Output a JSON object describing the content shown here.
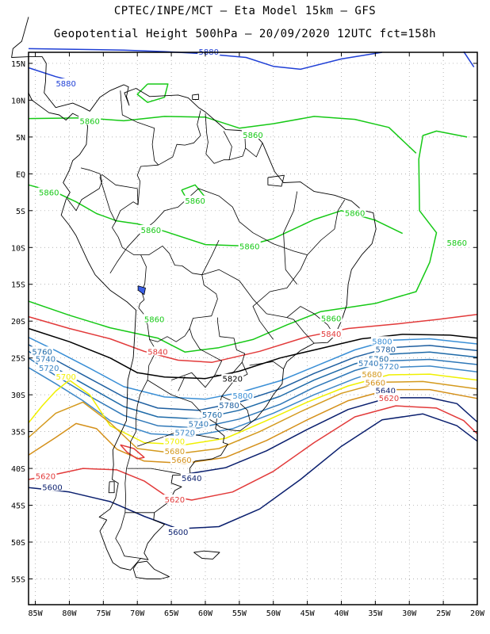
{
  "header": {
    "line1": "CPTEC/INPE/MCT –  Eta Model 15km – GFS",
    "line2": "Geopotential Height 500hPa – 20/09/2020 12UTC fct=158h"
  },
  "map": {
    "extent": {
      "lon": [
        -86,
        -20
      ],
      "lat": [
        -58.5,
        16.5
      ]
    },
    "lat_ticks": [
      {
        "lat": 15,
        "label": "15N"
      },
      {
        "lat": 10,
        "label": "10N"
      },
      {
        "lat": 5,
        "label": "5N"
      },
      {
        "lat": 0,
        "label": "EQ"
      },
      {
        "lat": -5,
        "label": "5S"
      },
      {
        "lat": -10,
        "label": "10S"
      },
      {
        "lat": -15,
        "label": "15S"
      },
      {
        "lat": -20,
        "label": "20S"
      },
      {
        "lat": -25,
        "label": "25S"
      },
      {
        "lat": -30,
        "label": "30S"
      },
      {
        "lat": -35,
        "label": "35S"
      },
      {
        "lat": -40,
        "label": "40S"
      },
      {
        "lat": -45,
        "label": "45S"
      },
      {
        "lat": -50,
        "label": "50S"
      },
      {
        "lat": -55,
        "label": "55S"
      }
    ],
    "lon_ticks": [
      {
        "lon": -85,
        "label": "85W"
      },
      {
        "lon": -80,
        "label": "80W"
      },
      {
        "lon": -75,
        "label": "75W"
      },
      {
        "lon": -70,
        "label": "70W"
      },
      {
        "lon": -65,
        "label": "65W"
      },
      {
        "lon": -60,
        "label": "60W"
      },
      {
        "lon": -55,
        "label": "55W"
      },
      {
        "lon": -50,
        "label": "50W"
      },
      {
        "lon": -45,
        "label": "45W"
      },
      {
        "lon": -40,
        "label": "40W"
      },
      {
        "lon": -35,
        "label": "35W"
      },
      {
        "lon": -30,
        "label": "30W"
      },
      {
        "lon": -25,
        "label": "25W"
      },
      {
        "lon": -20,
        "label": "20W"
      }
    ],
    "contour_colors": {
      "5880": "#1f3fd6",
      "5860": "#16c916",
      "5840": "#e23a3a",
      "5820": "#000000",
      "5800": "#3a8fd6",
      "5780": "#1e5fa0",
      "5760": "#1e6aa8",
      "5740": "#2f78b8",
      "5720": "#3d88c8",
      "5700": "#f0f000",
      "5680": "#d49a1e",
      "5660": "#d4901a",
      "5640": "#0a1f6e",
      "5620": "#e23a3a",
      "5600": "#0a1f6e"
    },
    "contour_labels": [
      {
        "text": "5880",
        "lon": -80.5,
        "lat": 12.3,
        "c": "5880"
      },
      {
        "text": "5880",
        "lon": -59.5,
        "lat": 16.6,
        "c": "5880"
      },
      {
        "text": "5860",
        "lon": -77.0,
        "lat": 7.2,
        "c": "5860"
      },
      {
        "text": "5860",
        "lon": -53.0,
        "lat": 5.3,
        "c": "5860"
      },
      {
        "text": "5860",
        "lon": -83.0,
        "lat": -2.5,
        "c": "5860"
      },
      {
        "text": "5860",
        "lon": -61.5,
        "lat": -3.6,
        "c": "5860"
      },
      {
        "text": "5860",
        "lon": -68.0,
        "lat": -7.6,
        "c": "5860"
      },
      {
        "text": "5860",
        "lon": -53.5,
        "lat": -9.8,
        "c": "5860"
      },
      {
        "text": "5860",
        "lon": -38.0,
        "lat": -5.3,
        "c": "5860"
      },
      {
        "text": "5860",
        "lon": -23.0,
        "lat": -9.3,
        "c": "5860"
      },
      {
        "text": "5860",
        "lon": -67.5,
        "lat": -19.7,
        "c": "5860"
      },
      {
        "text": "5860",
        "lon": -41.5,
        "lat": -19.6,
        "c": "5860"
      },
      {
        "text": "5840",
        "lon": -67.0,
        "lat": -24.1,
        "c": "5840"
      },
      {
        "text": "5840",
        "lon": -41.5,
        "lat": -21.7,
        "c": "5840"
      },
      {
        "text": "5820",
        "lon": -56.0,
        "lat": -27.8,
        "c": "5820"
      },
      {
        "text": "5800",
        "lon": -54.5,
        "lat": -30.1,
        "c": "5800"
      },
      {
        "text": "5800",
        "lon": -34.0,
        "lat": -22.7,
        "c": "5800"
      },
      {
        "text": "5780",
        "lon": -56.5,
        "lat": -31.4,
        "c": "5780"
      },
      {
        "text": "5780",
        "lon": -33.5,
        "lat": -23.8,
        "c": "5780"
      },
      {
        "text": "5760",
        "lon": -59.0,
        "lat": -32.7,
        "c": "5760"
      },
      {
        "text": "5740",
        "lon": -61.0,
        "lat": -33.9,
        "c": "5740"
      },
      {
        "text": "5720",
        "lon": -63.0,
        "lat": -35.1,
        "c": "5720"
      },
      {
        "text": "5720",
        "lon": -83.0,
        "lat": -26.3,
        "c": "5720"
      },
      {
        "text": "5720",
        "lon": -33.0,
        "lat": -26.1,
        "c": "5720"
      },
      {
        "text": "5700",
        "lon": -64.5,
        "lat": -36.3,
        "c": "5700"
      },
      {
        "text": "5700",
        "lon": -80.5,
        "lat": -27.5,
        "c": "5700"
      },
      {
        "text": "5680",
        "lon": -64.5,
        "lat": -37.6,
        "c": "5680"
      },
      {
        "text": "5680",
        "lon": -35.5,
        "lat": -27.2,
        "c": "5680"
      },
      {
        "text": "5660",
        "lon": -63.5,
        "lat": -38.8,
        "c": "5660"
      },
      {
        "text": "5660",
        "lon": -35.0,
        "lat": -28.3,
        "c": "5660"
      },
      {
        "text": "5640",
        "lon": -62.0,
        "lat": -41.3,
        "c": "5640"
      },
      {
        "text": "5640",
        "lon": -33.5,
        "lat": -29.4,
        "c": "5640"
      },
      {
        "text": "5620",
        "lon": -33.0,
        "lat": -30.4,
        "c": "5620"
      },
      {
        "text": "5620",
        "lon": -83.5,
        "lat": -41.0,
        "c": "5620"
      },
      {
        "text": "5620",
        "lon": -64.5,
        "lat": -44.2,
        "c": "5620"
      },
      {
        "text": "5600",
        "lon": -82.5,
        "lat": -42.5,
        "c": "5600"
      },
      {
        "text": "5600",
        "lon": -64.0,
        "lat": -48.6,
        "c": "5600"
      },
      {
        "text": "5740",
        "lon": -83.5,
        "lat": -25.1,
        "c": "5740"
      },
      {
        "text": "5760",
        "lon": -84.0,
        "lat": -24.1,
        "c": "5760"
      },
      {
        "text": "5760",
        "lon": -34.5,
        "lat": -25.1,
        "c": "5760"
      },
      {
        "text": "5740",
        "lon": -36.0,
        "lat": -25.7,
        "c": "5740"
      }
    ]
  }
}
